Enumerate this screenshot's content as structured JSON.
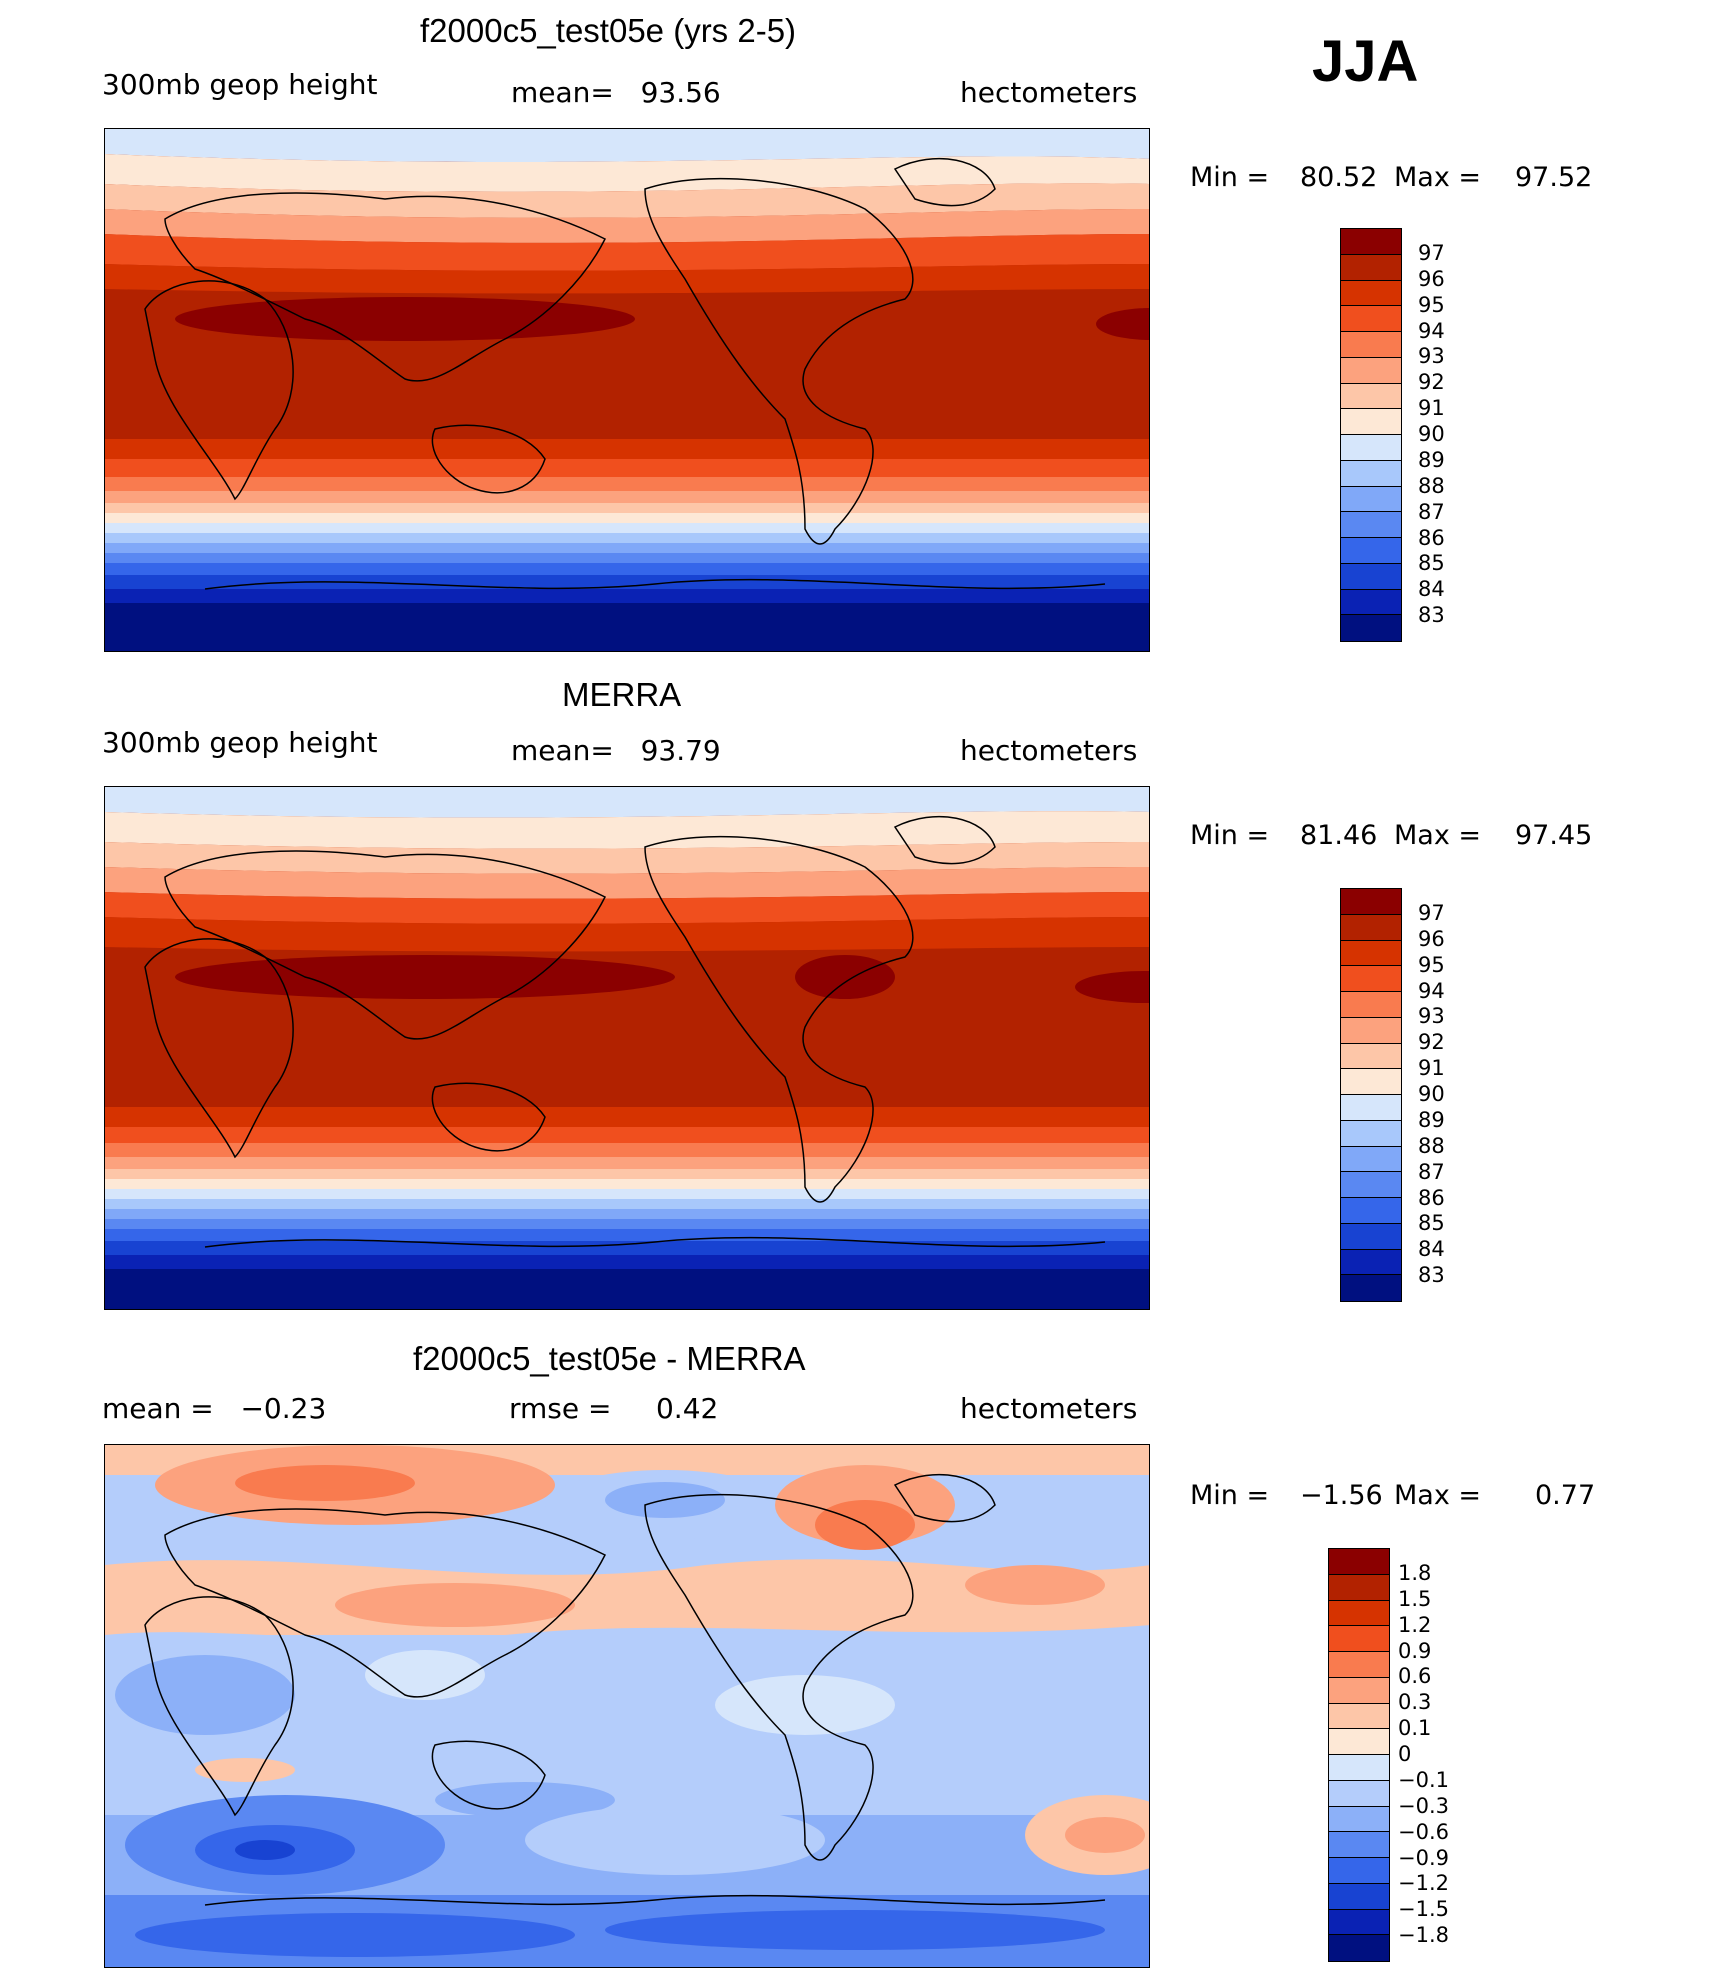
{
  "season": "JJA",
  "panels": [
    {
      "id": "model",
      "title": "f2000c5_test05e (yrs 2-5)",
      "left_label": "300mb geop height",
      "center_label": "mean=   93.56",
      "right_label": "hectometers",
      "min_label": "Min =",
      "min_value": "80.52",
      "max_label": "Max =",
      "max_value": "97.52",
      "colorbar_labels": [
        "97",
        "96",
        "95",
        "94",
        "93",
        "92",
        "91",
        "90",
        "89",
        "88",
        "87",
        "86",
        "85",
        "84",
        "83"
      ],
      "colorbar_colors": [
        "#8b0000",
        "#b22200",
        "#d63300",
        "#f04f1e",
        "#f97b4f",
        "#fca27e",
        "#fdc6a8",
        "#fde8d6",
        "#d6e6fb",
        "#a8c8fb",
        "#80a8f8",
        "#5a88f2",
        "#3566ea",
        "#1843d2",
        "#0a22b4",
        "#001080"
      ]
    },
    {
      "id": "obs",
      "title": "MERRA",
      "left_label": "300mb geop height",
      "center_label": "mean=   93.79",
      "right_label": "hectometers",
      "min_label": "Min =",
      "min_value": "81.46",
      "max_label": "Max =",
      "max_value": "97.45",
      "colorbar_labels": [
        "97",
        "96",
        "95",
        "94",
        "93",
        "92",
        "91",
        "90",
        "89",
        "88",
        "87",
        "86",
        "85",
        "84",
        "83"
      ],
      "colorbar_colors": [
        "#8b0000",
        "#b22200",
        "#d63300",
        "#f04f1e",
        "#f97b4f",
        "#fca27e",
        "#fdc6a8",
        "#fde8d6",
        "#d6e6fb",
        "#a8c8fb",
        "#80a8f8",
        "#5a88f2",
        "#3566ea",
        "#1843d2",
        "#0a22b4",
        "#001080"
      ]
    },
    {
      "id": "diff",
      "title": "f2000c5_test05e - MERRA",
      "left_label": "mean =   −0.23",
      "center_label": "rmse =     0.42",
      "right_label": "hectometers",
      "min_label": "Min =",
      "min_value": "−1.56",
      "max_label": "Max =",
      "max_value": "0.77",
      "colorbar_labels": [
        "1.8",
        "1.5",
        "1.2",
        "0.9",
        "0.6",
        "0.3",
        "0.1",
        "0",
        "−0.1",
        "−0.3",
        "−0.6",
        "−0.9",
        "−1.2",
        "−1.5",
        "−1.8"
      ],
      "colorbar_colors": [
        "#8b0000",
        "#b22200",
        "#d63300",
        "#f04f1e",
        "#f97b4f",
        "#fca27e",
        "#fdc6a8",
        "#fde8d6",
        "#d6e6fb",
        "#b4cdfb",
        "#8cb0f8",
        "#5a88f2",
        "#3566ea",
        "#1843d2",
        "#0a22b4",
        "#001080"
      ]
    }
  ]
}
